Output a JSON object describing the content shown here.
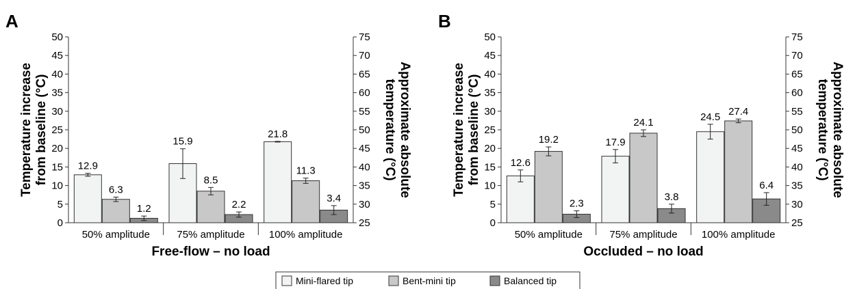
{
  "chart_data": [
    {
      "type": "bar",
      "panel": "A",
      "xlabel": "Free-flow – no load",
      "ylabel": "Temperature increase from baseline (°C)",
      "y2label": "Approximate absolute temperature (°C)",
      "ylim": [
        0,
        50
      ],
      "y2lim": [
        25,
        75
      ],
      "yticks": [
        "0",
        "5",
        "10",
        "15",
        "20",
        "25",
        "30",
        "35",
        "40",
        "45",
        "50"
      ],
      "y2ticks": [
        "25",
        "30",
        "35",
        "40",
        "45",
        "50",
        "55",
        "60",
        "65",
        "70",
        "75"
      ],
      "categories": [
        "50% amplitude",
        "75% amplitude",
        "100% amplitude"
      ],
      "series": [
        {
          "name": "Mini-flared tip",
          "values": [
            12.9,
            15.9,
            21.8
          ],
          "labels": [
            "12.9",
            "15.9",
            "21.8"
          ],
          "errors": [
            0.4,
            4.0,
            0.1
          ]
        },
        {
          "name": "Bent-mini tip",
          "values": [
            6.3,
            8.5,
            11.3
          ],
          "labels": [
            "6.3",
            "8.5",
            "11.3"
          ],
          "errors": [
            0.6,
            1.0,
            0.7
          ]
        },
        {
          "name": "Balanced tip",
          "values": [
            1.2,
            2.2,
            3.4
          ],
          "labels": [
            "1.2",
            "2.2",
            "3.4"
          ],
          "errors": [
            0.6,
            0.7,
            1.2
          ]
        }
      ]
    },
    {
      "type": "bar",
      "panel": "B",
      "xlabel": "Occluded – no load",
      "ylabel": "Temperature increase from baseline (°C)",
      "y2label": "Approximate absolute temperature (°C)",
      "ylim": [
        0,
        50
      ],
      "y2lim": [
        25,
        75
      ],
      "yticks": [
        "0",
        "5",
        "10",
        "15",
        "20",
        "25",
        "30",
        "35",
        "40",
        "45",
        "50"
      ],
      "y2ticks": [
        "25",
        "30",
        "35",
        "40",
        "45",
        "50",
        "55",
        "60",
        "65",
        "70",
        "75"
      ],
      "categories": [
        "50% amplitude",
        "75% amplitude",
        "100% amplitude"
      ],
      "series": [
        {
          "name": "Mini-flared tip",
          "values": [
            12.6,
            17.9,
            24.5
          ],
          "labels": [
            "12.6",
            "17.9",
            "24.5"
          ],
          "errors": [
            1.6,
            1.8,
            2.0
          ]
        },
        {
          "name": "Bent-mini tip",
          "values": [
            19.2,
            24.1,
            27.4
          ],
          "labels": [
            "19.2",
            "24.1",
            "27.4"
          ],
          "errors": [
            1.2,
            0.9,
            0.5
          ]
        },
        {
          "name": "Balanced tip",
          "values": [
            2.3,
            3.8,
            6.4
          ],
          "labels": [
            "2.3",
            "3.8",
            "6.4"
          ],
          "errors": [
            0.9,
            1.2,
            1.7
          ]
        }
      ]
    }
  ],
  "colors": {
    "Mini-flared tip": "#f2f3f3",
    "Bent-mini tip": "#c8c8c8",
    "Balanced tip": "#8a8a8a",
    "stroke": "#333333"
  },
  "legend": {
    "items": [
      {
        "label": "Mini-flared tip"
      },
      {
        "label": "Bent-mini tip"
      },
      {
        "label": "Balanced tip"
      }
    ]
  }
}
